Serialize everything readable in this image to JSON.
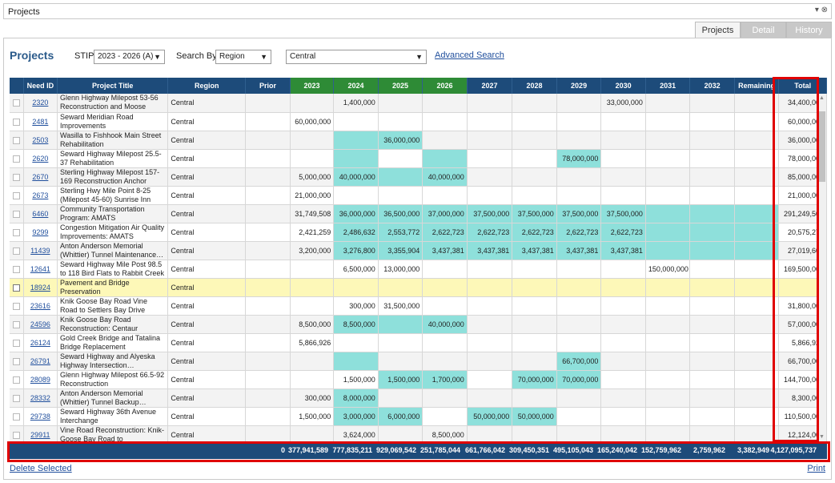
{
  "window": {
    "title": "Projects",
    "controls": "▾ ⊗"
  },
  "tabs": [
    {
      "label": "Projects",
      "active": true
    },
    {
      "label": "Detail",
      "active": false
    },
    {
      "label": "History",
      "active": false
    }
  ],
  "filters": {
    "heading": "Projects",
    "stip_label": "STIP",
    "stip_value": "2023 - 2026 (A)",
    "search_by_label": "Search By",
    "search_by_value": "Region",
    "region_value": "Central",
    "advanced_search": "Advanced Search"
  },
  "columns": [
    "Need ID",
    "Project Title",
    "Region",
    "Prior",
    "2023",
    "2024",
    "2025",
    "2026",
    "2027",
    "2028",
    "2029",
    "2030",
    "2031",
    "2032",
    "Remaining",
    "Total"
  ],
  "rows": [
    {
      "id": "2320",
      "title": "Glenn Highway Milepost 53-56 Reconstruction and Moose Cree…",
      "region": "Central",
      "vals": [
        "",
        "",
        "1,400,000",
        "",
        "",
        "",
        "",
        "",
        "33,000,000",
        "",
        "",
        ""
      ],
      "teal": [],
      "total": "34,400,000"
    },
    {
      "id": "2481",
      "title": "Seward Meridian Road Improvements",
      "region": "Central",
      "vals": [
        "",
        "60,000,000",
        "",
        "",
        "",
        "",
        "",
        "",
        "",
        "",
        "",
        ""
      ],
      "teal": [],
      "total": "60,000,000"
    },
    {
      "id": "2503",
      "title": "Wasilla to Fishhook Main Street Rehabilitation",
      "region": "Central",
      "vals": [
        "",
        "",
        "",
        "36,000,000",
        "",
        "",
        "",
        "",
        "",
        "",
        "",
        ""
      ],
      "teal": [
        2,
        3
      ],
      "total": "36,000,000"
    },
    {
      "id": "2620",
      "title": "Seward Highway Milepost 25.5-37 Rehabilitation",
      "region": "Central",
      "vals": [
        "",
        "",
        "",
        "",
        "",
        "",
        "",
        "78,000,000",
        "",
        "",
        "",
        ""
      ],
      "teal": [
        2,
        4,
        7
      ],
      "total": "78,000,000"
    },
    {
      "id": "2670",
      "title": "Sterling Highway Milepost 157-169 Reconstruction Anchor Point…",
      "region": "Central",
      "vals": [
        "",
        "5,000,000",
        "40,000,000",
        "",
        "40,000,000",
        "",
        "",
        "",
        "",
        "",
        "",
        ""
      ],
      "teal": [
        2,
        3,
        4
      ],
      "total": "85,000,000"
    },
    {
      "id": "2673",
      "title": "Sterling Hwy Mile Point 8-25 (Milepost 45-60) Sunrise Inn to…",
      "region": "Central",
      "vals": [
        "",
        "21,000,000",
        "",
        "",
        "",
        "",
        "",
        "",
        "",
        "",
        "",
        ""
      ],
      "teal": [],
      "total": "21,000,000"
    },
    {
      "id": "6460",
      "title": "Community Transportation Program: AMATS",
      "region": "Central",
      "vals": [
        "",
        "31,749,508",
        "36,000,000",
        "36,500,000",
        "37,000,000",
        "37,500,000",
        "37,500,000",
        "37,500,000",
        "37,500,000",
        "",
        "",
        ""
      ],
      "teal": [
        2,
        3,
        4,
        5,
        6,
        7,
        8,
        9,
        10,
        11
      ],
      "total": "291,249,508"
    },
    {
      "id": "9299",
      "title": "Congestion Mitigation Air Quality Improvements: AMATS",
      "region": "Central",
      "vals": [
        "",
        "2,421,259",
        "2,486,632",
        "2,553,772",
        "2,622,723",
        "2,622,723",
        "2,622,723",
        "2,622,723",
        "2,622,723",
        "",
        "",
        ""
      ],
      "teal": [
        2,
        3,
        4,
        5,
        6,
        7,
        8,
        9,
        10,
        11
      ],
      "total": "20,575,278"
    },
    {
      "id": "11439",
      "title": "Anton Anderson Memorial (Whittier) Tunnel Maintenance…",
      "region": "Central",
      "vals": [
        "",
        "3,200,000",
        "3,276,800",
        "3,355,904",
        "3,437,381",
        "3,437,381",
        "3,437,381",
        "3,437,381",
        "3,437,381",
        "",
        "",
        ""
      ],
      "teal": [
        2,
        3,
        4,
        5,
        6,
        7,
        8,
        9,
        10,
        11
      ],
      "total": "27,019,609"
    },
    {
      "id": "12641",
      "title": "Seward Highway Mile Post 98.5 to 118 Bird Flats to Rabbit Creek",
      "region": "Central",
      "vals": [
        "",
        "",
        "6,500,000",
        "13,000,000",
        "",
        "",
        "",
        "",
        "",
        "150,000,000",
        "",
        ""
      ],
      "teal": [],
      "total": "169,500,000"
    },
    {
      "id": "18924",
      "title": "Pavement and Bridge Preservation",
      "region": "Central",
      "vals": [
        "",
        "",
        "",
        "",
        "",
        "",
        "",
        "",
        "",
        "",
        "",
        ""
      ],
      "teal": [],
      "total": "",
      "highlight": true
    },
    {
      "id": "23616",
      "title": "Knik Goose Bay Road Vine Road to Settlers Bay Drive",
      "region": "Central",
      "vals": [
        "",
        "",
        "300,000",
        "31,500,000",
        "",
        "",
        "",
        "",
        "",
        "",
        "",
        ""
      ],
      "teal": [],
      "total": "31,800,000"
    },
    {
      "id": "24596",
      "title": "Knik Goose Bay Road Reconstruction: Centaur Avenue…",
      "region": "Central",
      "vals": [
        "",
        "8,500,000",
        "8,500,000",
        "",
        "40,000,000",
        "",
        "",
        "",
        "",
        "",
        "",
        ""
      ],
      "teal": [
        2,
        3,
        4
      ],
      "total": "57,000,000"
    },
    {
      "id": "26124",
      "title": "Gold Creek Bridge and Tatalina Bridge Replacement",
      "region": "Central",
      "vals": [
        "",
        "5,866,926",
        "",
        "",
        "",
        "",
        "",
        "",
        "",
        "",
        "",
        ""
      ],
      "teal": [],
      "total": "5,866,926"
    },
    {
      "id": "26791",
      "title": "Seward Highway and Alyeska Highway Intersection…",
      "region": "Central",
      "vals": [
        "",
        "",
        "",
        "",
        "",
        "",
        "",
        "66,700,000",
        "",
        "",
        "",
        ""
      ],
      "teal": [
        2,
        7
      ],
      "total": "66,700,000"
    },
    {
      "id": "28089",
      "title": "Glenn Highway Milepost 66.5-92 Reconstruction",
      "region": "Central",
      "vals": [
        "",
        "",
        "1,500,000",
        "1,500,000",
        "1,700,000",
        "",
        "70,000,000",
        "70,000,000",
        "",
        "",
        "",
        ""
      ],
      "teal": [
        3,
        4,
        6,
        7
      ],
      "total": "144,700,000"
    },
    {
      "id": "28332",
      "title": "Anton Anderson Memorial (Whittier) Tunnel Backup…",
      "region": "Central",
      "vals": [
        "",
        "300,000",
        "8,000,000",
        "",
        "",
        "",
        "",
        "",
        "",
        "",
        "",
        ""
      ],
      "teal": [
        2
      ],
      "total": "8,300,000"
    },
    {
      "id": "29738",
      "title": "Seward Highway 36th Avenue Interchange",
      "region": "Central",
      "vals": [
        "",
        "1,500,000",
        "3,000,000",
        "6,000,000",
        "",
        "50,000,000",
        "50,000,000",
        "",
        "",
        "",
        "",
        ""
      ],
      "teal": [
        2,
        3,
        5,
        6
      ],
      "total": "110,500,000"
    },
    {
      "id": "29911",
      "title": "Vine Road Reconstruction: Knik-Goose Bay Road to Hollywood…",
      "region": "Central",
      "vals": [
        "",
        "",
        "3,624,000",
        "",
        "8,500,000",
        "",
        "",
        "",
        "",
        "",
        "",
        ""
      ],
      "teal": [],
      "total": "12,124,000"
    }
  ],
  "totals": [
    "0",
    "377,941,589",
    "777,835,211",
    "929,069,542",
    "251,785,044",
    "661,766,042",
    "309,450,351",
    "495,105,043",
    "165,240,042",
    "152,759,962",
    "2,759,962",
    "3,382,949",
    "4,127,095,737"
  ],
  "footer": {
    "delete_selected": "Delete Selected",
    "print": "Print"
  },
  "colors": {
    "header": "#1d4b7a",
    "current_years_header": "#2e8b36",
    "teal_cell": "#8ee0db",
    "highlight_row": "#fdf8b8",
    "annotation": "#e00000"
  }
}
